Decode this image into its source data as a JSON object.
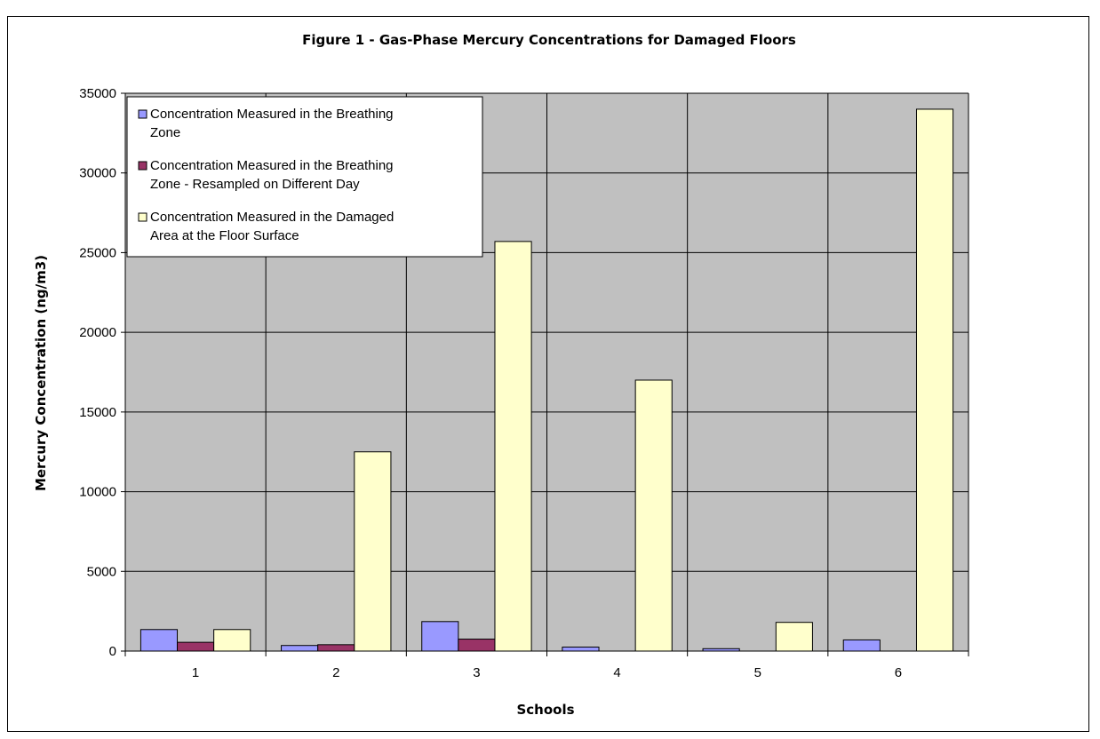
{
  "chart_data": {
    "type": "bar",
    "title": "Figure 1 -  Gas-Phase Mercury Concentrations for Damaged Floors",
    "xlabel": "Schools",
    "ylabel": "Mercury Concentration (ng/m3)",
    "categories": [
      "1",
      "2",
      "3",
      "4",
      "5",
      "6"
    ],
    "ylim": [
      0,
      35000
    ],
    "yticks": [
      "0",
      "5000",
      "10000",
      "15000",
      "20000",
      "25000",
      "30000",
      "35000"
    ],
    "grid": true,
    "legend_position": "top-left",
    "series": [
      {
        "name": "Concentration Measured in the Breathing Zone",
        "legend_lines": [
          "Concentration Measured in the Breathing",
          "Zone"
        ],
        "color": "#9999ff",
        "values": [
          1350,
          350,
          1850,
          250,
          150,
          700
        ]
      },
      {
        "name": "Concentration Measured in the Breathing Zone - Resampled on Different Day",
        "legend_lines": [
          "Concentration Measured in the Breathing",
          "Zone - Resampled on Different Day"
        ],
        "color": "#993366",
        "values": [
          550,
          400,
          750,
          0,
          0,
          0
        ]
      },
      {
        "name": "Concentration Measured in the Damaged Area at the Floor Surface",
        "legend_lines": [
          "Concentration Measured in the Damaged",
          "Area at the Floor Surface"
        ],
        "color": "#ffffcc",
        "values": [
          1350,
          12500,
          25700,
          17000,
          1800,
          34000
        ]
      }
    ],
    "plot_background": "#c0c0c0"
  }
}
